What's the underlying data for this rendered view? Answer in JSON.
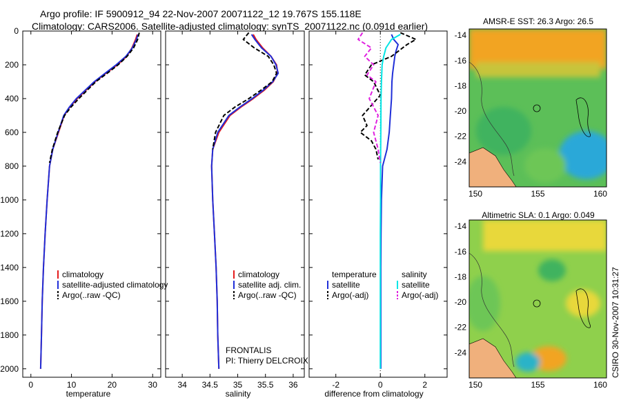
{
  "header": {
    "line1": "Argo profile: IF 5900912_94 22-Nov-2007 20071122_12 19.767S 155.118E",
    "line2": "Climatology: CARS2006. Satellite-adjusted climatology: synTS_20071122.nc (0.091d earlier)"
  },
  "watermark": "CSIRO 30-Nov-2007 10:31:27",
  "colors": {
    "climatology": "#e41a1c",
    "satellite": "#1f2ed8",
    "argo": "#000000",
    "satellite_salinity": "#00e5e5",
    "argo_salinity": "#e020e0",
    "land": "#f0b07c",
    "sst_cool": "#2aa8d8",
    "sst_mid": "#63c25a",
    "sst_warm": "#f0a020"
  },
  "chart_data": [
    {
      "id": "temperature",
      "type": "line",
      "xlabel": "temperature",
      "xlim": [
        -2,
        32
      ],
      "ylim": [
        2050,
        0
      ],
      "x_ticks": [
        0,
        10,
        20,
        30
      ],
      "y_ticks": [
        0,
        200,
        400,
        600,
        800,
        1000,
        1200,
        1400,
        1600,
        1800,
        2000
      ],
      "legend": [
        "climatology",
        "satellite-adjusted climatology",
        "Argo(..raw -QC)"
      ],
      "series": [
        {
          "name": "climatology",
          "x": [
            26.2,
            25.8,
            24.9,
            23.6,
            21.3,
            18.5,
            15.8,
            13.6,
            11.4,
            9.6,
            8.2,
            6.8,
            5.4,
            4.6,
            4.0,
            3.5,
            3.1,
            2.8,
            2.6,
            2.4
          ],
          "y": [
            20,
            50,
            100,
            150,
            200,
            250,
            300,
            350,
            400,
            450,
            500,
            600,
            700,
            800,
            1000,
            1200,
            1400,
            1600,
            1800,
            2000
          ]
        },
        {
          "name": "satellite-adjusted climatology",
          "x": [
            26.4,
            26.0,
            25.0,
            23.4,
            21.0,
            18.3,
            15.6,
            13.4,
            11.2,
            9.5,
            8.1,
            6.7,
            5.4,
            4.6,
            4.0,
            3.5,
            3.1,
            2.8,
            2.6,
            2.4
          ],
          "y": [
            20,
            50,
            100,
            150,
            200,
            250,
            300,
            350,
            400,
            450,
            500,
            600,
            700,
            800,
            1000,
            1200,
            1400,
            1600,
            1800,
            2000
          ]
        },
        {
          "name": "Argo(..raw -QC)",
          "x": [
            26.7,
            26.3,
            25.3,
            23.7,
            21.5,
            18.8,
            16.0,
            13.9,
            11.8,
            9.9,
            8.3,
            6.6,
            5.3,
            4.6
          ],
          "y": [
            10,
            50,
            100,
            150,
            200,
            250,
            300,
            350,
            400,
            450,
            500,
            600,
            700,
            780
          ]
        }
      ]
    },
    {
      "id": "salinity",
      "type": "line",
      "xlabel": "salinity",
      "xlim": [
        33.7,
        36.2
      ],
      "ylim": [
        2050,
        0
      ],
      "x_ticks": [
        34,
        34.5,
        35,
        35.5,
        36
      ],
      "legend": [
        "climatology",
        "satellite adj. clim.",
        "Argo(..raw -QC)"
      ],
      "annotation": [
        "FRONTALIS",
        "PI: Thierry DELCROIX"
      ],
      "series": [
        {
          "name": "climatology",
          "x": [
            35.28,
            35.33,
            35.45,
            35.6,
            35.7,
            35.72,
            35.64,
            35.48,
            35.28,
            35.06,
            34.86,
            34.66,
            34.55,
            34.53,
            34.55,
            34.58,
            34.61,
            34.63,
            34.64,
            34.66
          ],
          "y": [
            20,
            50,
            100,
            150,
            200,
            250,
            300,
            350,
            400,
            450,
            500,
            600,
            700,
            800,
            1000,
            1200,
            1400,
            1600,
            1800,
            2000
          ]
        },
        {
          "name": "satellite adj. clim.",
          "x": [
            35.25,
            35.31,
            35.43,
            35.6,
            35.69,
            35.73,
            35.63,
            35.46,
            35.26,
            35.04,
            34.84,
            34.64,
            34.55,
            34.53,
            34.55,
            34.58,
            34.61,
            34.63,
            34.64,
            34.66
          ],
          "y": [
            20,
            50,
            100,
            150,
            200,
            250,
            300,
            350,
            400,
            450,
            500,
            600,
            700,
            800,
            1000,
            1200,
            1400,
            1600,
            1800,
            2000
          ]
        },
        {
          "name": "Argo(..raw -QC)",
          "x": [
            35.2,
            35.1,
            35.3,
            35.55,
            35.65,
            35.7,
            35.62,
            35.42,
            35.2,
            34.95,
            34.75,
            34.6,
            34.55
          ],
          "y": [
            10,
            50,
            100,
            150,
            200,
            250,
            300,
            350,
            400,
            450,
            500,
            600,
            700
          ]
        }
      ]
    },
    {
      "id": "difference",
      "type": "line",
      "xlabel": "difference from climatology",
      "xlim": [
        -3.2,
        3.0
      ],
      "ylim": [
        2050,
        0
      ],
      "x_ticks": [
        -2,
        0,
        2
      ],
      "legend": {
        "temperature_title": "temperature",
        "salinity_title": "salinity",
        "temperature": [
          "satellite",
          "Argo(-adj)"
        ],
        "salinity": [
          "satellite",
          "Argo(-adj)"
        ]
      },
      "series": [
        {
          "name": "temperature satellite",
          "x": [
            0.5,
            0.6,
            0.8,
            0.7,
            0.65,
            0.6,
            0.55,
            0.52,
            0.5,
            0.45,
            0.4,
            0.3,
            0.2,
            0.1,
            0.05,
            0.03,
            0.02,
            0.02,
            0.02,
            0.02
          ],
          "y": [
            20,
            50,
            80,
            120,
            150,
            200,
            250,
            300,
            400,
            500,
            600,
            700,
            750,
            800,
            1000,
            1200,
            1400,
            1600,
            1800,
            2000
          ]
        },
        {
          "name": "temperature Argo(-adj)",
          "x": [
            0.9,
            1.6,
            1.2,
            0.8,
            0.5,
            -0.4,
            -0.7,
            -0.3,
            0.0,
            -0.8,
            -0.6,
            -0.9,
            -0.4,
            -0.2,
            -0.1
          ],
          "y": [
            10,
            50,
            80,
            120,
            150,
            200,
            260,
            300,
            380,
            500,
            560,
            600,
            650,
            700,
            760
          ]
        },
        {
          "name": "salinity satellite",
          "x": [
            0.9,
            0.5,
            0.25,
            0.15,
            0.08,
            0.05,
            0.03,
            0.02,
            0.01,
            0.01,
            0.0,
            0.0,
            0.0,
            0.0
          ],
          "y": [
            20,
            50,
            100,
            150,
            200,
            300,
            400,
            600,
            800,
            1000,
            1200,
            1400,
            1600,
            2000
          ]
        },
        {
          "name": "salinity Argo(-adj)",
          "x": [
            -0.8,
            -1.0,
            -0.4,
            -0.7,
            -0.3,
            -0.6,
            -0.2,
            -0.5,
            -0.1,
            -0.3,
            -0.1,
            0.0
          ],
          "y": [
            10,
            50,
            100,
            150,
            200,
            260,
            300,
            400,
            500,
            600,
            700,
            780
          ]
        }
      ]
    },
    {
      "id": "sst_map",
      "type": "heatmap",
      "title": "AMSR-E SST: 26.3 Argo: 26.5",
      "x_ticks": [
        150,
        155,
        160
      ],
      "y_ticks": [
        -14,
        -16,
        -18,
        -20,
        -22,
        -24
      ],
      "xlim": [
        149.5,
        160.5
      ],
      "ylim": [
        -26,
        -13.5
      ],
      "marker": {
        "lon": 155.1,
        "lat": -19.8
      }
    },
    {
      "id": "sla_map",
      "type": "heatmap",
      "title": "Altimetric SLA: 0.1 Argo: 0.049",
      "x_ticks": [
        150,
        155,
        160
      ],
      "y_ticks": [
        -14,
        -16,
        -18,
        -20,
        -22,
        -24
      ],
      "xlim": [
        149.5,
        160.5
      ],
      "ylim": [
        -26,
        -13.5
      ],
      "marker": {
        "lon": 155.1,
        "lat": -19.8
      }
    }
  ]
}
